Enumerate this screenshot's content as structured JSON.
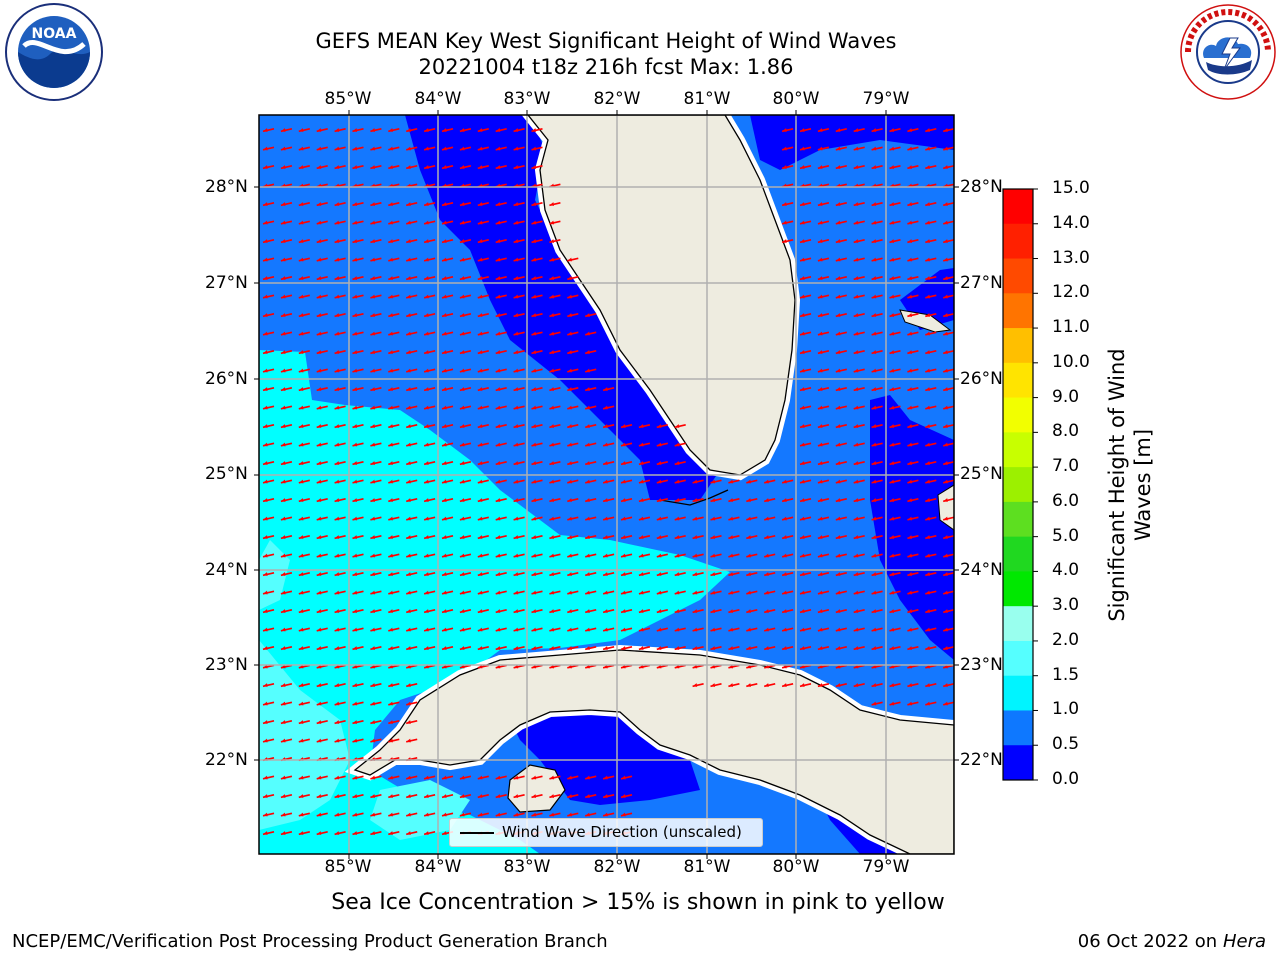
{
  "title": {
    "line1": "GEFS MEAN Key West Significant Height of Wind Waves",
    "line2": "20221004 t18z 216h fcst   Max: 1.86"
  },
  "logos": {
    "noaa": {
      "label": "NOAA",
      "ring_text": "NATIONAL OCEANIC AND ATMOSPHERIC ADMINISTRATION · U.S. DEPARTMENT OF COMMERCE",
      "icon": "noaa-logo"
    },
    "nws": {
      "ring_text": "NATIONAL WEATHER SERVICE",
      "icon": "nws-logo"
    }
  },
  "axes": {
    "longitude_labels": [
      "85°W",
      "84°W",
      "83°W",
      "82°W",
      "81°W",
      "80°W",
      "79°W"
    ],
    "latitude_labels": [
      "28°N",
      "27°N",
      "26°N",
      "25°N",
      "24°N",
      "23°N",
      "22°N"
    ]
  },
  "legend": {
    "label": "Wind Wave Direction (unscaled)"
  },
  "colorbar": {
    "title_line1": "Significant Height of Wind",
    "title_line2": "Waves [m]",
    "ticks": [
      "15.0",
      "14.0",
      "13.0",
      "12.0",
      "11.0",
      "10.0",
      "9.0",
      "8.0",
      "7.0",
      "6.0",
      "5.0",
      "4.0",
      "3.0",
      "2.0",
      "1.5",
      "1.0",
      "0.5",
      "0.0"
    ],
    "colors": [
      "#ff0000",
      "#ff2000",
      "#ff4a00",
      "#ff7400",
      "#ff9a00",
      "#ffbf00",
      "#ffe400",
      "#f2ff00",
      "#c8ff00",
      "#9cf000",
      "#5ddf20",
      "#20d820",
      "#00e800",
      "#55f58a",
      "#99ffee",
      "#55ffff",
      "#00f4ff",
      "#0e78ff",
      "#0000ff"
    ]
  },
  "map_colors": {
    "land": "#eeece0",
    "ocean_0_0.5": "#0000ff",
    "ocean_0.5_1.0": "#1478ff",
    "ocean_1.0_1.5": "#00ffff",
    "ocean_1.5_2.0": "#55ffff",
    "arrows": "#ff0000",
    "grid": "#b0b0b0"
  },
  "footer": {
    "ice_note": "Sea Ice Concentration > 15% is shown in pink to yellow",
    "branch": "NCEP/EMC/Verification Post Processing Product Generation Branch",
    "date": "06 Oct 2022 on",
    "host": "Hera"
  }
}
